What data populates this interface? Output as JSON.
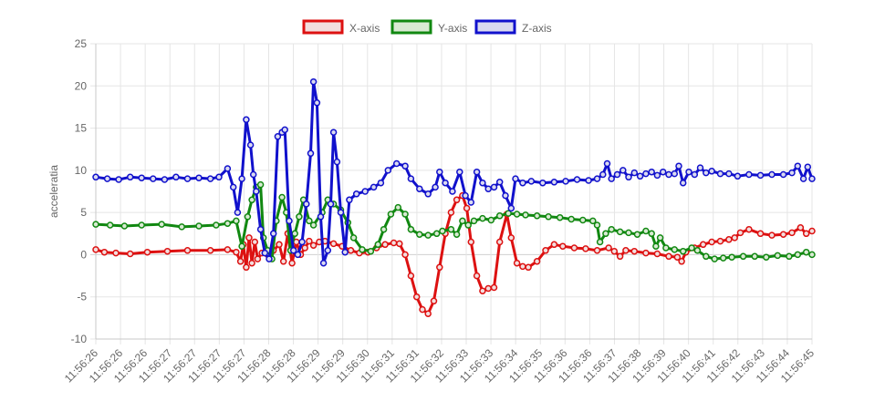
{
  "chart_data": {
    "type": "line",
    "ylabel": "acceleratia",
    "ylim": [
      -10,
      25
    ],
    "yticks": [
      25,
      20,
      15,
      10,
      5,
      0,
      -5,
      -10
    ],
    "grid": true,
    "legend_position": "top-center",
    "categories": [
      "11:56:26",
      "11:56:26",
      "11:56:26",
      "11:56:27",
      "11:56:27",
      "11:56:27",
      "11:56:27",
      "11:56:28",
      "11:56:28",
      "11:56:29",
      "11:56:29",
      "11:56:30",
      "11:56:31",
      "11:56:31",
      "11:56:32",
      "11:56:33",
      "11:56:33",
      "11:56:34",
      "11:56:35",
      "11:56:36",
      "11:56:36",
      "11:56:37",
      "11:56:38",
      "11:56:39",
      "11:56:40",
      "11:56:41",
      "11:56:42",
      "11:56:43",
      "11:56:44",
      "11:56:45"
    ],
    "series": [
      {
        "name": "X-axis",
        "color": "#dd1111",
        "fill": "#f2dede",
        "points": [
          [
            0,
            0.6
          ],
          [
            0.3,
            0.3
          ],
          [
            0.7,
            0.2
          ],
          [
            1.2,
            0.1
          ],
          [
            1.8,
            0.3
          ],
          [
            2.5,
            0.4
          ],
          [
            3.2,
            0.5
          ],
          [
            4.0,
            0.5
          ],
          [
            4.6,
            0.6
          ],
          [
            4.9,
            0.3
          ],
          [
            5.05,
            -0.8
          ],
          [
            5.15,
            1.2
          ],
          [
            5.25,
            -1.5
          ],
          [
            5.35,
            2.0
          ],
          [
            5.45,
            -1.0
          ],
          [
            5.55,
            1.5
          ],
          [
            5.65,
            -0.5
          ],
          [
            5.8,
            0.2
          ],
          [
            6.0,
            0.0
          ],
          [
            6.2,
            0.5
          ],
          [
            6.4,
            1.2
          ],
          [
            6.55,
            -0.8
          ],
          [
            6.7,
            2.5
          ],
          [
            6.85,
            -1.0
          ],
          [
            7.0,
            1.5
          ],
          [
            7.15,
            0.0
          ],
          [
            7.3,
            0.8
          ],
          [
            7.45,
            1.6
          ],
          [
            7.6,
            1.1
          ],
          [
            7.8,
            1.5
          ],
          [
            8.0,
            1.6
          ],
          [
            8.3,
            1.3
          ],
          [
            8.6,
            1.0
          ],
          [
            8.9,
            0.5
          ],
          [
            9.2,
            0.2
          ],
          [
            9.5,
            0.3
          ],
          [
            9.8,
            0.8
          ],
          [
            10.1,
            1.2
          ],
          [
            10.4,
            1.4
          ],
          [
            10.6,
            1.3
          ],
          [
            10.8,
            0.0
          ],
          [
            11.0,
            -2.5
          ],
          [
            11.2,
            -5.0
          ],
          [
            11.4,
            -6.5
          ],
          [
            11.6,
            -7.0
          ],
          [
            11.8,
            -5.5
          ],
          [
            12.0,
            -1.5
          ],
          [
            12.2,
            2.5
          ],
          [
            12.4,
            5.0
          ],
          [
            12.6,
            6.5
          ],
          [
            12.8,
            7.0
          ],
          [
            12.95,
            5.5
          ],
          [
            13.1,
            1.5
          ],
          [
            13.3,
            -2.5
          ],
          [
            13.5,
            -4.3
          ],
          [
            13.7,
            -4.0
          ],
          [
            13.9,
            -3.9
          ],
          [
            14.1,
            1.5
          ],
          [
            14.35,
            4.8
          ],
          [
            14.5,
            2.0
          ],
          [
            14.7,
            -1.0
          ],
          [
            14.9,
            -1.4
          ],
          [
            15.1,
            -1.5
          ],
          [
            15.4,
            -0.8
          ],
          [
            15.7,
            0.5
          ],
          [
            16.0,
            1.2
          ],
          [
            16.3,
            1.0
          ],
          [
            16.7,
            0.8
          ],
          [
            17.1,
            0.7
          ],
          [
            17.5,
            0.5
          ],
          [
            17.9,
            0.8
          ],
          [
            18.1,
            0.4
          ],
          [
            18.3,
            -0.2
          ],
          [
            18.5,
            0.5
          ],
          [
            18.8,
            0.4
          ],
          [
            19.2,
            0.2
          ],
          [
            19.6,
            0.1
          ],
          [
            20.0,
            -0.2
          ],
          [
            20.3,
            -0.3
          ],
          [
            20.45,
            -0.8
          ],
          [
            20.6,
            0.3
          ],
          [
            20.9,
            0.8
          ],
          [
            21.2,
            1.2
          ],
          [
            21.5,
            1.5
          ],
          [
            21.8,
            1.6
          ],
          [
            22.1,
            1.8
          ],
          [
            22.3,
            2.0
          ],
          [
            22.5,
            2.6
          ],
          [
            22.8,
            3.0
          ],
          [
            23.2,
            2.5
          ],
          [
            23.6,
            2.3
          ],
          [
            24.0,
            2.4
          ],
          [
            24.3,
            2.6
          ],
          [
            24.6,
            3.2
          ],
          [
            24.8,
            2.5
          ],
          [
            25.0,
            2.8
          ]
        ]
      },
      {
        "name": "Y-axis",
        "color": "#118811",
        "fill": "#d9ead3",
        "points": [
          [
            0,
            3.6
          ],
          [
            0.5,
            3.5
          ],
          [
            1.0,
            3.4
          ],
          [
            1.6,
            3.5
          ],
          [
            2.3,
            3.6
          ],
          [
            3.0,
            3.3
          ],
          [
            3.6,
            3.4
          ],
          [
            4.2,
            3.5
          ],
          [
            4.6,
            3.7
          ],
          [
            4.9,
            4.0
          ],
          [
            5.1,
            1.0
          ],
          [
            5.3,
            4.5
          ],
          [
            5.45,
            6.5
          ],
          [
            5.6,
            8.0
          ],
          [
            5.75,
            8.3
          ],
          [
            5.85,
            2.0
          ],
          [
            6.0,
            0.5
          ],
          [
            6.15,
            -0.5
          ],
          [
            6.3,
            4.0
          ],
          [
            6.5,
            6.8
          ],
          [
            6.65,
            5.0
          ],
          [
            6.8,
            0.5
          ],
          [
            6.95,
            2.5
          ],
          [
            7.1,
            4.5
          ],
          [
            7.25,
            6.5
          ],
          [
            7.45,
            4.0
          ],
          [
            7.6,
            3.5
          ],
          [
            7.9,
            5.0
          ],
          [
            8.1,
            6.5
          ],
          [
            8.3,
            6.0
          ],
          [
            8.55,
            5.3
          ],
          [
            8.8,
            3.8
          ],
          [
            9.0,
            2.0
          ],
          [
            9.3,
            0.6
          ],
          [
            9.6,
            0.4
          ],
          [
            9.85,
            1.2
          ],
          [
            10.05,
            3.0
          ],
          [
            10.3,
            4.8
          ],
          [
            10.55,
            5.6
          ],
          [
            10.8,
            4.8
          ],
          [
            11.0,
            3.0
          ],
          [
            11.3,
            2.4
          ],
          [
            11.6,
            2.3
          ],
          [
            11.9,
            2.5
          ],
          [
            12.1,
            2.8
          ],
          [
            12.4,
            3.0
          ],
          [
            12.6,
            2.4
          ],
          [
            12.8,
            4.0
          ],
          [
            13.0,
            3.5
          ],
          [
            13.2,
            4.0
          ],
          [
            13.5,
            4.3
          ],
          [
            13.8,
            4.1
          ],
          [
            14.1,
            4.6
          ],
          [
            14.4,
            4.9
          ],
          [
            14.7,
            4.8
          ],
          [
            15.0,
            4.7
          ],
          [
            15.4,
            4.6
          ],
          [
            15.8,
            4.5
          ],
          [
            16.2,
            4.4
          ],
          [
            16.6,
            4.2
          ],
          [
            17.0,
            4.1
          ],
          [
            17.35,
            4.0
          ],
          [
            17.5,
            3.5
          ],
          [
            17.6,
            1.5
          ],
          [
            17.8,
            2.5
          ],
          [
            18.0,
            3.0
          ],
          [
            18.3,
            2.7
          ],
          [
            18.6,
            2.6
          ],
          [
            18.9,
            2.4
          ],
          [
            19.2,
            2.8
          ],
          [
            19.4,
            2.5
          ],
          [
            19.55,
            1.0
          ],
          [
            19.7,
            2.0
          ],
          [
            19.9,
            0.8
          ],
          [
            20.2,
            0.6
          ],
          [
            20.5,
            0.4
          ],
          [
            20.8,
            0.8
          ],
          [
            21.0,
            0.5
          ],
          [
            21.3,
            -0.2
          ],
          [
            21.6,
            -0.5
          ],
          [
            21.9,
            -0.4
          ],
          [
            22.2,
            -0.3
          ],
          [
            22.6,
            -0.2
          ],
          [
            23.0,
            -0.2
          ],
          [
            23.4,
            -0.3
          ],
          [
            23.8,
            -0.1
          ],
          [
            24.2,
            -0.2
          ],
          [
            24.5,
            0.0
          ],
          [
            24.8,
            0.3
          ],
          [
            25.0,
            0.0
          ]
        ]
      },
      {
        "name": "Z-axis",
        "color": "#1111cc",
        "fill": "#dadaf0",
        "points": [
          [
            0,
            9.2
          ],
          [
            0.4,
            9.0
          ],
          [
            0.8,
            8.9
          ],
          [
            1.2,
            9.2
          ],
          [
            1.6,
            9.1
          ],
          [
            2.0,
            9.0
          ],
          [
            2.4,
            8.9
          ],
          [
            2.8,
            9.2
          ],
          [
            3.2,
            9.0
          ],
          [
            3.6,
            9.1
          ],
          [
            4.0,
            9.0
          ],
          [
            4.3,
            9.2
          ],
          [
            4.6,
            10.2
          ],
          [
            4.8,
            8.0
          ],
          [
            4.95,
            5.0
          ],
          [
            5.1,
            9.0
          ],
          [
            5.25,
            16.0
          ],
          [
            5.4,
            13.0
          ],
          [
            5.5,
            9.5
          ],
          [
            5.6,
            7.5
          ],
          [
            5.75,
            3.0
          ],
          [
            5.9,
            0.2
          ],
          [
            6.05,
            -0.5
          ],
          [
            6.2,
            2.5
          ],
          [
            6.35,
            14.0
          ],
          [
            6.5,
            14.5
          ],
          [
            6.6,
            14.8
          ],
          [
            6.75,
            4.0
          ],
          [
            6.9,
            0.5
          ],
          [
            7.05,
            0.0
          ],
          [
            7.2,
            1.5
          ],
          [
            7.35,
            6.0
          ],
          [
            7.5,
            12.0
          ],
          [
            7.6,
            20.5
          ],
          [
            7.72,
            18.0
          ],
          [
            7.85,
            4.5
          ],
          [
            7.95,
            -1.0
          ],
          [
            8.1,
            0.5
          ],
          [
            8.2,
            6.0
          ],
          [
            8.3,
            14.5
          ],
          [
            8.42,
            11.0
          ],
          [
            8.55,
            5.0
          ],
          [
            8.7,
            0.3
          ],
          [
            8.85,
            6.5
          ],
          [
            9.1,
            7.2
          ],
          [
            9.4,
            7.5
          ],
          [
            9.7,
            8.0
          ],
          [
            9.95,
            8.5
          ],
          [
            10.2,
            10.0
          ],
          [
            10.5,
            10.8
          ],
          [
            10.8,
            10.5
          ],
          [
            11.0,
            9.0
          ],
          [
            11.3,
            7.8
          ],
          [
            11.6,
            7.2
          ],
          [
            11.85,
            8.0
          ],
          [
            12.0,
            9.8
          ],
          [
            12.2,
            8.5
          ],
          [
            12.45,
            7.5
          ],
          [
            12.7,
            9.8
          ],
          [
            12.9,
            7.0
          ],
          [
            13.1,
            6.2
          ],
          [
            13.3,
            9.8
          ],
          [
            13.5,
            8.5
          ],
          [
            13.7,
            7.8
          ],
          [
            13.9,
            8.0
          ],
          [
            14.1,
            8.6
          ],
          [
            14.3,
            7.0
          ],
          [
            14.5,
            5.5
          ],
          [
            14.65,
            9.0
          ],
          [
            14.9,
            8.5
          ],
          [
            15.2,
            8.7
          ],
          [
            15.6,
            8.5
          ],
          [
            16.0,
            8.6
          ],
          [
            16.4,
            8.7
          ],
          [
            16.8,
            8.9
          ],
          [
            17.2,
            8.8
          ],
          [
            17.5,
            9.0
          ],
          [
            17.7,
            9.5
          ],
          [
            17.85,
            10.8
          ],
          [
            18.0,
            9.0
          ],
          [
            18.2,
            9.5
          ],
          [
            18.4,
            10.0
          ],
          [
            18.6,
            9.2
          ],
          [
            18.8,
            9.7
          ],
          [
            19.0,
            9.3
          ],
          [
            19.2,
            9.6
          ],
          [
            19.4,
            9.8
          ],
          [
            19.6,
            9.4
          ],
          [
            19.8,
            9.8
          ],
          [
            20.0,
            9.5
          ],
          [
            20.2,
            9.6
          ],
          [
            20.35,
            10.5
          ],
          [
            20.5,
            8.5
          ],
          [
            20.7,
            9.8
          ],
          [
            20.9,
            9.5
          ],
          [
            21.1,
            10.3
          ],
          [
            21.3,
            9.7
          ],
          [
            21.5,
            9.9
          ],
          [
            21.8,
            9.6
          ],
          [
            22.1,
            9.6
          ],
          [
            22.4,
            9.3
          ],
          [
            22.8,
            9.5
          ],
          [
            23.2,
            9.4
          ],
          [
            23.6,
            9.5
          ],
          [
            24.0,
            9.5
          ],
          [
            24.3,
            9.7
          ],
          [
            24.5,
            10.5
          ],
          [
            24.7,
            9.0
          ],
          [
            24.85,
            10.4
          ],
          [
            25.0,
            9.0
          ]
        ]
      }
    ]
  }
}
